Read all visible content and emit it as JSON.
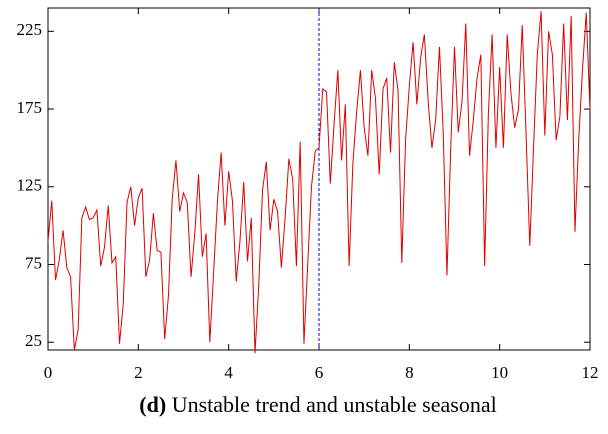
{
  "chart_data": {
    "type": "line",
    "caption_label": "(d)",
    "caption": "Unstable trend and unstable seasonal",
    "x": [
      0,
      0.083,
      0.167,
      0.25,
      0.333,
      0.417,
      0.5,
      0.583,
      0.667,
      0.75,
      0.833,
      0.917,
      1,
      1.083,
      1.167,
      1.25,
      1.333,
      1.417,
      1.5,
      1.583,
      1.667,
      1.75,
      1.833,
      1.917,
      2,
      2.083,
      2.167,
      2.25,
      2.333,
      2.417,
      2.5,
      2.583,
      2.667,
      2.75,
      2.833,
      2.917,
      3,
      3.083,
      3.167,
      3.25,
      3.333,
      3.417,
      3.5,
      3.583,
      3.667,
      3.75,
      3.833,
      3.917,
      4,
      4.083,
      4.167,
      4.25,
      4.333,
      4.417,
      4.5,
      4.583,
      4.667,
      4.75,
      4.833,
      4.917,
      5,
      5.083,
      5.167,
      5.25,
      5.333,
      5.417,
      5.5,
      5.583,
      5.667,
      5.75,
      5.833,
      5.917,
      6,
      6.083,
      6.167,
      6.25,
      6.333,
      6.417,
      6.5,
      6.583,
      6.667,
      6.75,
      6.833,
      6.917,
      7,
      7.083,
      7.167,
      7.25,
      7.333,
      7.417,
      7.5,
      7.583,
      7.667,
      7.75,
      7.833,
      7.917,
      8,
      8.083,
      8.167,
      8.25,
      8.333,
      8.417,
      8.5,
      8.583,
      8.667,
      8.75,
      8.833,
      8.917,
      9,
      9.083,
      9.167,
      9.25,
      9.333,
      9.417,
      9.5,
      9.583,
      9.667,
      9.75,
      9.833,
      9.917,
      10,
      10.083,
      10.167,
      10.25,
      10.333,
      10.417,
      10.5,
      10.583,
      10.667,
      10.75,
      10.833,
      10.917,
      11,
      11.083,
      11.167,
      11.25,
      11.333,
      11.417,
      11.5,
      11.583,
      11.667,
      11.75,
      11.833,
      11.917,
      12
    ],
    "series": [
      {
        "color": "#e00000",
        "values": [
          90,
          116,
          65,
          78,
          97,
          73,
          67,
          20,
          33,
          105,
          112,
          104,
          105,
          110,
          74,
          86,
          113,
          76,
          80,
          24,
          50,
          115,
          125,
          100,
          118,
          124,
          67,
          78,
          108,
          84,
          83,
          27,
          55,
          117,
          142,
          109,
          121,
          115,
          67,
          95,
          133,
          80,
          95,
          25,
          70,
          115,
          147,
          100,
          135,
          116,
          64,
          90,
          128,
          77,
          105,
          18,
          62,
          123,
          141,
          97,
          117,
          109,
          73,
          105,
          143,
          130,
          74,
          154,
          24,
          75,
          125,
          148,
          150,
          188,
          186,
          127,
          165,
          200,
          142,
          178,
          74,
          140,
          173,
          200,
          163,
          145,
          200,
          182,
          133,
          188,
          195,
          147,
          205,
          187,
          76,
          155,
          190,
          218,
          178,
          208,
          223,
          180,
          150,
          168,
          215,
          160,
          68,
          150,
          215,
          160,
          180,
          230,
          145,
          168,
          195,
          210,
          74,
          172,
          223,
          150,
          202,
          150,
          223,
          185,
          163,
          175,
          229,
          160,
          87,
          150,
          210,
          238,
          158,
          225,
          210,
          155,
          170,
          230,
          168,
          235,
          96,
          155,
          200,
          237,
          174
        ]
      }
    ],
    "vline": {
      "x": 6,
      "color": "#0000dd"
    },
    "xlim": [
      0,
      12
    ],
    "ylim": [
      20,
      240
    ],
    "xticks": [
      0,
      2,
      4,
      6,
      8,
      10,
      12
    ],
    "yticks": [
      25,
      75,
      125,
      175,
      225
    ]
  }
}
